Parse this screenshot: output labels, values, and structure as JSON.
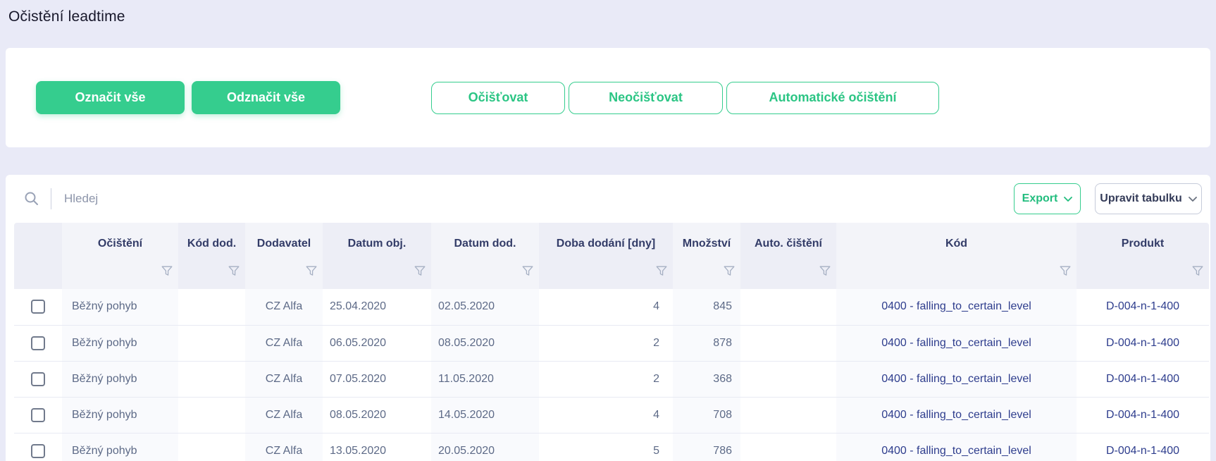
{
  "page": {
    "title": "Očistění leadtime"
  },
  "toolbar": {
    "select_all": "Označit vše",
    "deselect_all": "Odznačit vše",
    "clean": "Očišťovat",
    "dont_clean": "Neočišťovat",
    "auto_clean": "Automatické očištění"
  },
  "controls": {
    "search_placeholder": "Hledej",
    "export_label": "Export",
    "edit_table_label": "Upravit tabulku"
  },
  "icons": {
    "search": "magnifier",
    "filter": "funnel",
    "export_chevron": "chevron-down",
    "edit_table_chevron": "chevron-down"
  },
  "colors": {
    "accent_green": "#35cd8e",
    "page_background": "#e9eaf7",
    "header_text": "#333c68",
    "body_text": "#5d6a87",
    "code_text": "#2e3d8d"
  },
  "table": {
    "columns": [
      "",
      "Očištění",
      "Kód dod.",
      "Dodavatel",
      "Datum obj.",
      "Datum dod.",
      "Doba dodání [dny]",
      "Množství",
      "Auto. čištění",
      "Kód",
      "Produkt"
    ],
    "cell_names": [
      "cell-ocisteni",
      "cell-kod-dod",
      "cell-dodavatel",
      "cell-datum-obj",
      "cell-datum-dod",
      "cell-doba-dodani",
      "cell-mnozstvi",
      "cell-auto-cisteni",
      "cell-kod",
      "cell-produkt"
    ],
    "rows": [
      {
        "checked": false,
        "cells": [
          "Běžný pohyb",
          "",
          "CZ Alfa",
          "25.04.2020",
          "02.05.2020",
          "4",
          "845",
          "",
          "0400 - falling_to_certain_level",
          "D-004-n-1-400"
        ]
      },
      {
        "checked": false,
        "cells": [
          "Běžný pohyb",
          "",
          "CZ Alfa",
          "06.05.2020",
          "08.05.2020",
          "2",
          "878",
          "",
          "0400 - falling_to_certain_level",
          "D-004-n-1-400"
        ]
      },
      {
        "checked": false,
        "cells": [
          "Běžný pohyb",
          "",
          "CZ Alfa",
          "07.05.2020",
          "11.05.2020",
          "2",
          "368",
          "",
          "0400 - falling_to_certain_level",
          "D-004-n-1-400"
        ]
      },
      {
        "checked": false,
        "cells": [
          "Běžný pohyb",
          "",
          "CZ Alfa",
          "08.05.2020",
          "14.05.2020",
          "4",
          "708",
          "",
          "0400 - falling_to_certain_level",
          "D-004-n-1-400"
        ]
      },
      {
        "checked": false,
        "cells": [
          "Běžný pohyb",
          "",
          "CZ Alfa",
          "13.05.2020",
          "20.05.2020",
          "5",
          "786",
          "",
          "0400 - falling_to_certain_level",
          "D-004-n-1-400"
        ]
      }
    ]
  }
}
